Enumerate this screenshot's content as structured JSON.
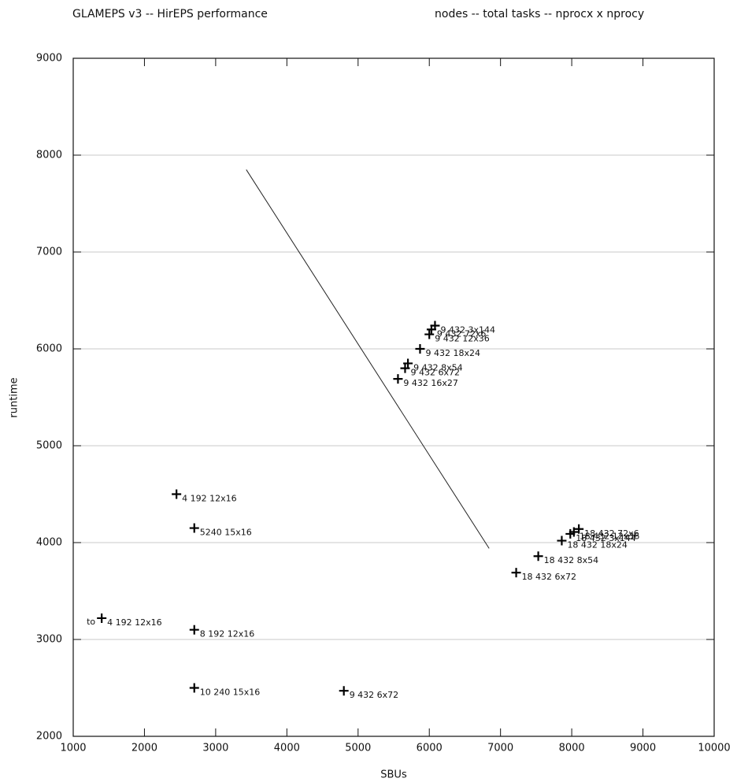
{
  "chart_data": {
    "type": "scatter",
    "title": "GLAMEPS v3 -- HirEPS performance",
    "subtitle": "nodes -- total tasks -- nprocx x nprocy",
    "x_label": "SBUs",
    "y_label": "runtime",
    "xlim": [
      1000,
      10000
    ],
    "ylim": [
      2000,
      9000
    ],
    "xticks": [
      1000,
      2000,
      3000,
      4000,
      5000,
      6000,
      7000,
      8000,
      9000,
      10000
    ],
    "yticks": [
      2000,
      3000,
      4000,
      5000,
      6000,
      7000,
      8000,
      9000
    ],
    "grid": true,
    "points": [
      {
        "x": 2450,
        "y": 4500,
        "label": "4 192 12x16",
        "color": "#111111"
      },
      {
        "x": 2700,
        "y": 4150,
        "label": "5240 15x16",
        "color": "#111111"
      },
      {
        "x": 1400,
        "y": 3220,
        "label": "4 192 12x16",
        "color": "#111111"
      },
      {
        "x": 2700,
        "y": 3100,
        "label": "8 192 12x16",
        "color": "#111111"
      },
      {
        "x": 2700,
        "y": 2500,
        "label": "10 240 15x16",
        "color": "#111111"
      },
      {
        "x": 4800,
        "y": 2470,
        "label": "9 432  6x72",
        "color": "#111111"
      },
      {
        "x": 6080,
        "y": 6240,
        "label": "9 432 3x144",
        "color": "#f0602a"
      },
      {
        "x": 6030,
        "y": 6200,
        "label": "9 432  72x6",
        "color": "#2a3cf0"
      },
      {
        "x": 6000,
        "y": 6150,
        "label": "9 432 12x36",
        "color": "#35b8f0"
      },
      {
        "x": 5870,
        "y": 6000,
        "label": "9 432 18x24",
        "color": "#35d035"
      },
      {
        "x": 5700,
        "y": 5850,
        "label": "9 432  8x54",
        "color": "#e020e0"
      },
      {
        "x": 5660,
        "y": 5800,
        "label": "9 432  6x72",
        "color": "#f02020"
      },
      {
        "x": 5560,
        "y": 5690,
        "label": "9 432 16x27",
        "color": "#111111"
      },
      {
        "x": 8100,
        "y": 4140,
        "label": "18 432  72x6",
        "color": "#2a3cf0"
      },
      {
        "x": 8030,
        "y": 4110,
        "label": "18 432 12x36",
        "color": "#35b8f0"
      },
      {
        "x": 7980,
        "y": 4090,
        "label": "18 432 3x144",
        "color": "#f0602a"
      },
      {
        "x": 7860,
        "y": 4020,
        "label": "18 432 18x24",
        "color": "#35d035"
      },
      {
        "x": 7530,
        "y": 3860,
        "label": "18 432  8x54",
        "color": "#e020e0"
      },
      {
        "x": 7220,
        "y": 3690,
        "label": "18 432  6x72",
        "color": "#f02020"
      }
    ],
    "annotations": [
      {
        "text": "to",
        "x": 1250,
        "y": 3180
      }
    ],
    "trend": {
      "x": [
        3430,
        6840
      ],
      "y": [
        7850,
        3940
      ]
    }
  }
}
